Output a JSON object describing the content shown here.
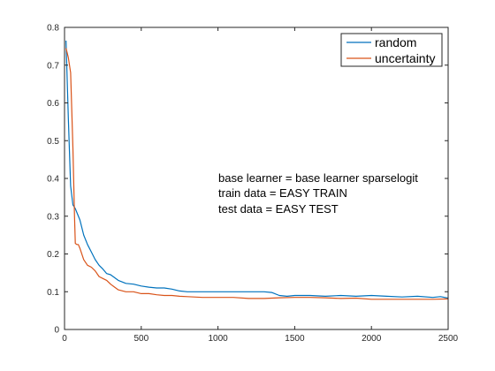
{
  "chart_data": {
    "type": "line",
    "title": "",
    "xlabel": "",
    "ylabel": "",
    "xlim": [
      0,
      2500
    ],
    "ylim": [
      0,
      0.8
    ],
    "xticks": [
      0,
      500,
      1000,
      1500,
      2000,
      2500
    ],
    "yticks": [
      0,
      0.1,
      0.2,
      0.3,
      0.4,
      0.5,
      0.6,
      0.7,
      0.8
    ],
    "xtick_labels": [
      "0",
      "500",
      "1000",
      "1500",
      "2000",
      "2500"
    ],
    "ytick_labels": [
      "0",
      "0.1",
      "0.2",
      "0.3",
      "0.4",
      "0.5",
      "0.6",
      "0.7",
      "0.8"
    ],
    "grid": false,
    "legend_position": "top-right",
    "series": [
      {
        "name": "random",
        "color": "#0072BD",
        "x": [
          10,
          25,
          40,
          55,
          70,
          85,
          100,
          125,
          150,
          175,
          200,
          225,
          250,
          275,
          300,
          350,
          400,
          450,
          500,
          550,
          600,
          650,
          700,
          750,
          800,
          900,
          1000,
          1100,
          1200,
          1300,
          1350,
          1400,
          1450,
          1500,
          1600,
          1700,
          1800,
          1900,
          2000,
          2100,
          2200,
          2300,
          2400,
          2450,
          2500
        ],
        "y": [
          0.765,
          0.56,
          0.38,
          0.33,
          0.32,
          0.305,
          0.29,
          0.25,
          0.225,
          0.205,
          0.185,
          0.17,
          0.16,
          0.148,
          0.145,
          0.13,
          0.122,
          0.12,
          0.115,
          0.112,
          0.11,
          0.11,
          0.107,
          0.102,
          0.1,
          0.1,
          0.1,
          0.1,
          0.1,
          0.1,
          0.098,
          0.09,
          0.088,
          0.09,
          0.09,
          0.088,
          0.09,
          0.088,
          0.09,
          0.088,
          0.086,
          0.088,
          0.085,
          0.087,
          0.083
        ]
      },
      {
        "name": "uncertainty",
        "color": "#D95319",
        "x": [
          10,
          25,
          40,
          55,
          65,
          70,
          80,
          90,
          100,
          125,
          150,
          175,
          200,
          225,
          250,
          275,
          300,
          350,
          400,
          450,
          500,
          550,
          600,
          650,
          700,
          750,
          800,
          900,
          1000,
          1100,
          1200,
          1300,
          1400,
          1500,
          1600,
          1700,
          1800,
          1900,
          2000,
          2100,
          2200,
          2300,
          2400,
          2500
        ],
        "y": [
          0.745,
          0.72,
          0.68,
          0.48,
          0.3,
          0.228,
          0.225,
          0.225,
          0.215,
          0.185,
          0.17,
          0.165,
          0.155,
          0.14,
          0.135,
          0.13,
          0.12,
          0.105,
          0.1,
          0.1,
          0.095,
          0.095,
          0.092,
          0.09,
          0.09,
          0.088,
          0.087,
          0.085,
          0.085,
          0.085,
          0.082,
          0.082,
          0.084,
          0.085,
          0.085,
          0.084,
          0.082,
          0.083,
          0.08,
          0.08,
          0.08,
          0.08,
          0.08,
          0.081
        ]
      }
    ],
    "annotations": [
      "base learner = base learner sparselogit",
      "train data = EASY TRAIN",
      "test data = EASY TEST"
    ]
  }
}
